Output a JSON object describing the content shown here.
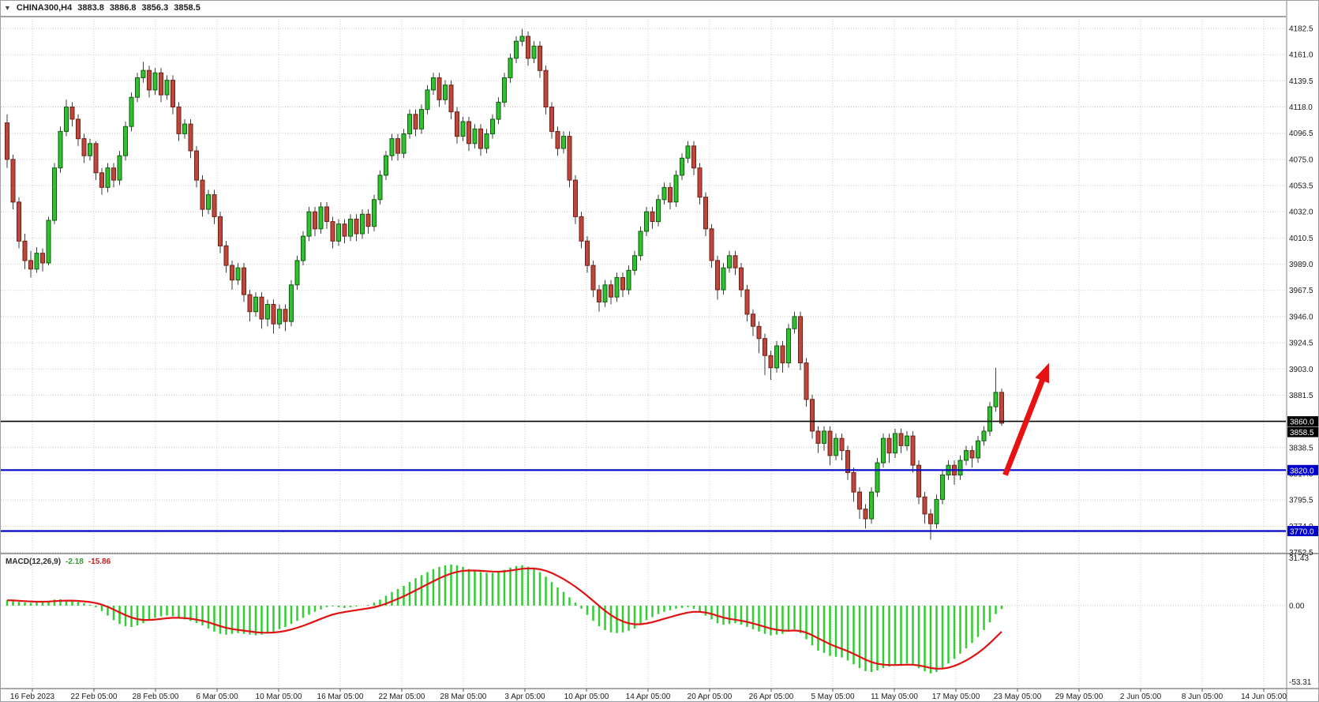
{
  "header": {
    "one_click_icon": "▼",
    "symbol_period": "CHINA300,H4",
    "quote_open": "3883.8",
    "quote_high": "3886.8",
    "quote_low": "3856.3",
    "quote_close": "3858.5"
  },
  "indicator_label": {
    "name": "MACD(12,26,9)",
    "macd_value": "-2.18",
    "signal_value": "-15.86"
  },
  "colors": {
    "bull_fill": "#2fc12f",
    "bull_stroke": "#0f5c0f",
    "bear_fill": "#c0463a",
    "bear_stroke": "#6e2018",
    "wick": "#3c3c3c",
    "grid": "#c9c9c9",
    "macd_histogram": "#32cd32",
    "macd_signal": "#e01212",
    "axis_text": "#1a1a1a"
  },
  "hlines": [
    {
      "label": "3860.0",
      "price": 3860.0,
      "color": "#000000",
      "width": 1.6
    },
    {
      "label": "3820.0",
      "price": 3820.0,
      "color": "#0000c8",
      "width": 2.2
    },
    {
      "label": "3770.0",
      "price": 3770.0,
      "color": "#0000c8",
      "width": 2.2
    }
  ],
  "price_flags": [
    {
      "label": "3860.0",
      "price": 3860.0,
      "color": "#000000"
    },
    {
      "label": "3858.5",
      "price": 3858.5,
      "color": "#000000"
    },
    {
      "label": "3820.0",
      "price": 3820.0,
      "color": "#0000c8"
    },
    {
      "label": "3770.0",
      "price": 3770.0,
      "color": "#0000c8"
    }
  ],
  "arrow": {
    "from_index": 168.6,
    "from_price": 3816,
    "to_index": 176,
    "to_price": 3908,
    "color": "#e81212",
    "width": 7
  },
  "chart_data": {
    "type": "candlestick",
    "title": "CHINA300,H4",
    "symbol": "CHINA300",
    "timeframe": "H4",
    "ylim": [
      3752.5,
      4182.5
    ],
    "grid": true,
    "price_gridlines": [
      4182.5,
      4161.0,
      4139.5,
      4118.0,
      4096.5,
      4075.0,
      4053.5,
      4032.0,
      4010.5,
      3989.0,
      3967.5,
      3946.0,
      3924.5,
      3903.0,
      3881.5,
      3860.0,
      3838.5,
      3817.0,
      3795.5,
      3774.0,
      3752.5
    ],
    "time_labels": [
      "16 Feb 2023",
      "22 Feb 05:00",
      "28 Feb 05:00",
      "6 Mar 05:00",
      "10 Mar 05:00",
      "16 Mar 05:00",
      "22 Mar 05:00",
      "28 Mar 05:00",
      "3 Apr 05:00",
      "10 Apr 05:00",
      "14 Apr 05:00",
      "20 Apr 05:00",
      "26 Apr 05:00",
      "5 May 05:00",
      "11 May 05:00",
      "17 May 05:00",
      "23 May 05:00",
      "29 May 05:00",
      "2 Jun 05:00",
      "8 Jun 05:00",
      "14 Jun 05:00"
    ],
    "candles": [
      [
        4105,
        4112,
        4068,
        4075
      ],
      [
        4075,
        4079,
        4034,
        4040
      ],
      [
        4040,
        4044,
        4002,
        4008
      ],
      [
        4008,
        4014,
        3985,
        3992
      ],
      [
        3992,
        4000,
        3978,
        3985
      ],
      [
        3985,
        4003,
        3982,
        3998
      ],
      [
        3998,
        4002,
        3983,
        3990
      ],
      [
        3990,
        4028,
        3988,
        4025
      ],
      [
        4025,
        4072,
        4022,
        4068
      ],
      [
        4068,
        4102,
        4064,
        4098
      ],
      [
        4098,
        4124,
        4094,
        4118
      ],
      [
        4118,
        4122,
        4102,
        4108
      ],
      [
        4108,
        4112,
        4086,
        4092
      ],
      [
        4092,
        4096,
        4072,
        4078
      ],
      [
        4078,
        4092,
        4074,
        4088
      ],
      [
        4088,
        4090,
        4058,
        4064
      ],
      [
        4064,
        4068,
        4046,
        4052
      ],
      [
        4052,
        4072,
        4048,
        4068
      ],
      [
        4068,
        4072,
        4052,
        4058
      ],
      [
        4058,
        4082,
        4054,
        4078
      ],
      [
        4078,
        4106,
        4074,
        4102
      ],
      [
        4102,
        4130,
        4098,
        4126
      ],
      [
        4126,
        4146,
        4122,
        4142
      ],
      [
        4142,
        4155,
        4138,
        4148
      ],
      [
        4148,
        4152,
        4126,
        4132
      ],
      [
        4132,
        4150,
        4128,
        4146
      ],
      [
        4146,
        4150,
        4122,
        4128
      ],
      [
        4128,
        4144,
        4124,
        4140
      ],
      [
        4140,
        4144,
        4112,
        4118
      ],
      [
        4118,
        4122,
        4090,
        4096
      ],
      [
        4096,
        4108,
        4092,
        4104
      ],
      [
        4104,
        4108,
        4076,
        4082
      ],
      [
        4082,
        4086,
        4052,
        4058
      ],
      [
        4058,
        4062,
        4028,
        4034
      ],
      [
        4034,
        4050,
        4030,
        4046
      ],
      [
        4046,
        4050,
        4022,
        4028
      ],
      [
        4028,
        4032,
        3998,
        4004
      ],
      [
        4004,
        4008,
        3982,
        3988
      ],
      [
        3988,
        3992,
        3968,
        3976
      ],
      [
        3976,
        3990,
        3972,
        3986
      ],
      [
        3986,
        3990,
        3958,
        3964
      ],
      [
        3964,
        3968,
        3942,
        3950
      ],
      [
        3950,
        3966,
        3946,
        3962
      ],
      [
        3962,
        3966,
        3936,
        3944
      ],
      [
        3944,
        3960,
        3938,
        3956
      ],
      [
        3956,
        3960,
        3932,
        3940
      ],
      [
        3940,
        3956,
        3936,
        3952
      ],
      [
        3952,
        3956,
        3934,
        3942
      ],
      [
        3942,
        3976,
        3938,
        3972
      ],
      [
        3972,
        3996,
        3968,
        3992
      ],
      [
        3992,
        4016,
        3988,
        4012
      ],
      [
        4012,
        4036,
        4008,
        4032
      ],
      [
        4032,
        4036,
        4012,
        4018
      ],
      [
        4018,
        4040,
        4014,
        4036
      ],
      [
        4036,
        4040,
        4018,
        4024
      ],
      [
        4024,
        4028,
        4002,
        4008
      ],
      [
        4008,
        4026,
        4004,
        4022
      ],
      [
        4022,
        4026,
        4006,
        4012
      ],
      [
        4012,
        4030,
        4008,
        4026
      ],
      [
        4026,
        4030,
        4008,
        4014
      ],
      [
        4014,
        4034,
        4010,
        4030
      ],
      [
        4030,
        4034,
        4014,
        4020
      ],
      [
        4020,
        4046,
        4016,
        4042
      ],
      [
        4042,
        4066,
        4038,
        4062
      ],
      [
        4062,
        4082,
        4058,
        4078
      ],
      [
        4078,
        4096,
        4074,
        4092
      ],
      [
        4092,
        4096,
        4074,
        4080
      ],
      [
        4080,
        4100,
        4076,
        4096
      ],
      [
        4096,
        4116,
        4092,
        4112
      ],
      [
        4112,
        4116,
        4094,
        4100
      ],
      [
        4100,
        4120,
        4096,
        4116
      ],
      [
        4116,
        4136,
        4112,
        4132
      ],
      [
        4132,
        4146,
        4128,
        4142
      ],
      [
        4142,
        4146,
        4118,
        4124
      ],
      [
        4124,
        4140,
        4120,
        4136
      ],
      [
        4136,
        4140,
        4108,
        4114
      ],
      [
        4114,
        4118,
        4088,
        4094
      ],
      [
        4094,
        4110,
        4090,
        4106
      ],
      [
        4106,
        4110,
        4082,
        4088
      ],
      [
        4088,
        4104,
        4084,
        4100
      ],
      [
        4100,
        4104,
        4078,
        4084
      ],
      [
        4084,
        4100,
        4080,
        4096
      ],
      [
        4096,
        4112,
        4092,
        4108
      ],
      [
        4108,
        4126,
        4104,
        4122
      ],
      [
        4122,
        4146,
        4118,
        4142
      ],
      [
        4142,
        4162,
        4138,
        4158
      ],
      [
        4158,
        4176,
        4154,
        4172
      ],
      [
        4172,
        4182,
        4168,
        4176
      ],
      [
        4176,
        4180,
        4152,
        4158
      ],
      [
        4158,
        4172,
        4154,
        4168
      ],
      [
        4168,
        4172,
        4142,
        4148
      ],
      [
        4148,
        4152,
        4112,
        4118
      ],
      [
        4118,
        4122,
        4092,
        4098
      ],
      [
        4098,
        4102,
        4078,
        4084
      ],
      [
        4084,
        4098,
        4080,
        4094
      ],
      [
        4094,
        4098,
        4052,
        4058
      ],
      [
        4058,
        4062,
        4022,
        4028
      ],
      [
        4028,
        4032,
        4002,
        4008
      ],
      [
        4008,
        4012,
        3982,
        3988
      ],
      [
        3988,
        3992,
        3962,
        3968
      ],
      [
        3968,
        3972,
        3950,
        3958
      ],
      [
        3958,
        3976,
        3954,
        3972
      ],
      [
        3972,
        3976,
        3956,
        3962
      ],
      [
        3962,
        3982,
        3958,
        3978
      ],
      [
        3978,
        3982,
        3962,
        3968
      ],
      [
        3968,
        3988,
        3964,
        3984
      ],
      [
        3984,
        4000,
        3980,
        3996
      ],
      [
        3996,
        4020,
        3992,
        4016
      ],
      [
        4016,
        4036,
        4012,
        4032
      ],
      [
        4032,
        4036,
        4018,
        4024
      ],
      [
        4024,
        4046,
        4020,
        4042
      ],
      [
        4042,
        4056,
        4038,
        4052
      ],
      [
        4052,
        4056,
        4034,
        4040
      ],
      [
        4040,
        4066,
        4036,
        4062
      ],
      [
        4062,
        4080,
        4058,
        4076
      ],
      [
        4076,
        4090,
        4072,
        4086
      ],
      [
        4086,
        4090,
        4062,
        4068
      ],
      [
        4068,
        4072,
        4038,
        4044
      ],
      [
        4044,
        4048,
        4012,
        4018
      ],
      [
        4018,
        4022,
        3986,
        3992
      ],
      [
        3992,
        3996,
        3960,
        3968
      ],
      [
        3968,
        3990,
        3964,
        3986
      ],
      [
        3986,
        4000,
        3982,
        3996
      ],
      [
        3996,
        4000,
        3980,
        3986
      ],
      [
        3986,
        3990,
        3962,
        3968
      ],
      [
        3968,
        3972,
        3942,
        3948
      ],
      [
        3948,
        3952,
        3930,
        3938
      ],
      [
        3938,
        3942,
        3916,
        3928
      ],
      [
        3928,
        3932,
        3898,
        3914
      ],
      [
        3914,
        3918,
        3894,
        3904
      ],
      [
        3904,
        3926,
        3900,
        3922
      ],
      [
        3922,
        3926,
        3900,
        3908
      ],
      [
        3908,
        3940,
        3904,
        3936
      ],
      [
        3936,
        3950,
        3932,
        3946
      ],
      [
        3946,
        3950,
        3902,
        3908
      ],
      [
        3908,
        3912,
        3872,
        3878
      ],
      [
        3878,
        3882,
        3846,
        3852
      ],
      [
        3852,
        3856,
        3834,
        3842
      ],
      [
        3842,
        3856,
        3836,
        3852
      ],
      [
        3852,
        3856,
        3824,
        3832
      ],
      [
        3832,
        3850,
        3828,
        3846
      ],
      [
        3846,
        3850,
        3828,
        3836
      ],
      [
        3836,
        3840,
        3812,
        3818
      ],
      [
        3818,
        3822,
        3794,
        3802
      ],
      [
        3802,
        3806,
        3780,
        3788
      ],
      [
        3788,
        3792,
        3772,
        3780
      ],
      [
        3780,
        3806,
        3776,
        3802
      ],
      [
        3802,
        3830,
        3798,
        3826
      ],
      [
        3826,
        3850,
        3822,
        3846
      ],
      [
        3846,
        3850,
        3826,
        3834
      ],
      [
        3834,
        3854,
        3830,
        3850
      ],
      [
        3850,
        3854,
        3834,
        3840
      ],
      [
        3840,
        3852,
        3836,
        3848
      ],
      [
        3848,
        3852,
        3818,
        3824
      ],
      [
        3824,
        3828,
        3792,
        3798
      ],
      [
        3798,
        3802,
        3776,
        3784
      ],
      [
        3784,
        3788,
        3763,
        3776
      ],
      [
        3776,
        3800,
        3772,
        3796
      ],
      [
        3796,
        3820,
        3792,
        3816
      ],
      [
        3816,
        3828,
        3812,
        3824
      ],
      [
        3824,
        3828,
        3808,
        3816
      ],
      [
        3816,
        3832,
        3812,
        3828
      ],
      [
        3828,
        3840,
        3824,
        3836
      ],
      [
        3836,
        3840,
        3822,
        3830
      ],
      [
        3830,
        3848,
        3826,
        3844
      ],
      [
        3844,
        3856,
        3840,
        3852
      ],
      [
        3852,
        3876,
        3848,
        3872
      ],
      [
        3872,
        3904,
        3868,
        3883.8
      ],
      [
        3883.8,
        3886.8,
        3856.3,
        3858.5
      ]
    ],
    "macd": {
      "params": "12,26,9",
      "signal_ema_period": 9,
      "current_macd": -2.18,
      "current_signal": -15.86,
      "scale_labels": [
        "31.43",
        "0.00",
        "-53.31"
      ],
      "scale_values": [
        31.43,
        0,
        -53.31
      ],
      "histogram": [
        3.5,
        3,
        2.5,
        2,
        1.8,
        2,
        2.5,
        3.2,
        4,
        4.2,
        3.8,
        3.2,
        2.4,
        1.6,
        0.6,
        -1,
        -3.5,
        -6.5,
        -9.5,
        -12,
        -13.5,
        -14,
        -13,
        -11.5,
        -9.5,
        -8,
        -7,
        -6.5,
        -7,
        -8,
        -9,
        -10,
        -11.5,
        -13,
        -15,
        -17,
        -18.5,
        -19,
        -18.5,
        -18,
        -18.5,
        -19,
        -19.5,
        -19,
        -18,
        -17,
        -15.5,
        -14,
        -12,
        -10,
        -8,
        -6,
        -4,
        -2.5,
        -1,
        -0.5,
        -1,
        -1.5,
        -1,
        -0.5,
        0,
        0.5,
        2,
        4,
        6.5,
        9,
        11,
        13,
        15.5,
        18,
        20,
        22,
        24,
        25.5,
        26.5,
        27,
        26.5,
        25.5,
        24,
        23,
        22,
        21.5,
        21.5,
        22,
        23.5,
        25,
        26,
        26.5,
        25.5,
        24,
        22,
        19,
        15.5,
        12,
        9,
        5.5,
        2,
        -2,
        -6,
        -10,
        -13.5,
        -16,
        -17.5,
        -18,
        -17.5,
        -16.5,
        -15,
        -12,
        -9.5,
        -7.5,
        -5.5,
        -4,
        -3,
        -2,
        -1.5,
        -1,
        -2,
        -4,
        -6.5,
        -9,
        -11.5,
        -12.5,
        -12,
        -11.5,
        -12.5,
        -14,
        -15.5,
        -17,
        -18.5,
        -19.5,
        -19,
        -18.5,
        -17,
        -15.5,
        -18,
        -22,
        -26,
        -29.5,
        -31,
        -33,
        -33.5,
        -34,
        -36,
        -38.5,
        -41,
        -43,
        -43.5,
        -42.5,
        -41,
        -40,
        -39,
        -38.5,
        -38,
        -39,
        -41,
        -43,
        -44.5,
        -43.5,
        -41,
        -38,
        -35,
        -31.5,
        -28,
        -24.5,
        -20.5,
        -16,
        -11,
        -5.5,
        -2.18
      ]
    }
  }
}
